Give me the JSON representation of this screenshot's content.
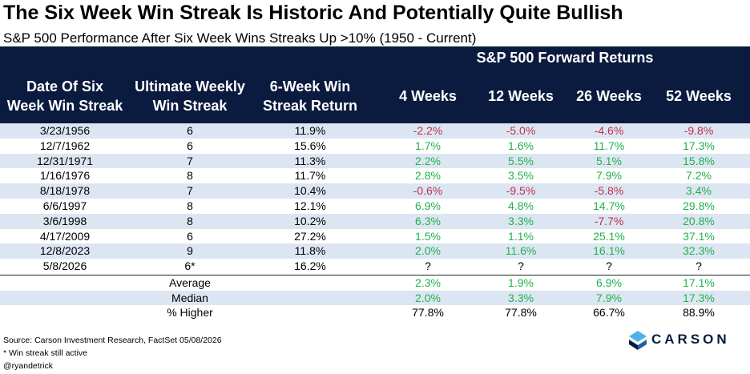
{
  "title": "The Six Week Win Streak Is Historic And Potentially Quite Bullish",
  "subtitle": "S&P 500 Performance After Six Week Wins Streaks Up >10% (1950 - Current)",
  "header": {
    "forward_returns": "S&P 500 Forward Returns",
    "date_line1": "Date Of Six",
    "date_line2": "Week Win Streak",
    "ult_line1": "Ultimate Weekly",
    "ult_line2": "Win Streak",
    "ret_line1": "6-Week Win",
    "ret_line2": "Streak Return",
    "w4": "4 Weeks",
    "w12": "12 Weeks",
    "w26": "26 Weeks",
    "w52": "52 Weeks"
  },
  "rows": [
    {
      "date": "3/23/1956",
      "ult": "6",
      "ret": "11.9%",
      "w4": "-2.2%",
      "w12": "-5.0%",
      "w26": "-4.6%",
      "w52": "-9.8%"
    },
    {
      "date": "12/7/1962",
      "ult": "6",
      "ret": "15.6%",
      "w4": "1.7%",
      "w12": "1.6%",
      "w26": "11.7%",
      "w52": "17.3%"
    },
    {
      "date": "12/31/1971",
      "ult": "7",
      "ret": "11.3%",
      "w4": "2.2%",
      "w12": "5.5%",
      "w26": "5.1%",
      "w52": "15.8%"
    },
    {
      "date": "1/16/1976",
      "ult": "8",
      "ret": "11.7%",
      "w4": "2.8%",
      "w12": "3.5%",
      "w26": "7.9%",
      "w52": "7.2%"
    },
    {
      "date": "8/18/1978",
      "ult": "7",
      "ret": "10.4%",
      "w4": "-0.6%",
      "w12": "-9.5%",
      "w26": "-5.8%",
      "w52": "3.4%"
    },
    {
      "date": "6/6/1997",
      "ult": "8",
      "ret": "12.1%",
      "w4": "6.9%",
      "w12": "4.8%",
      "w26": "14.7%",
      "w52": "29.8%"
    },
    {
      "date": "3/6/1998",
      "ult": "8",
      "ret": "10.2%",
      "w4": "6.3%",
      "w12": "3.3%",
      "w26": "-7.7%",
      "w52": "20.8%"
    },
    {
      "date": "4/17/2009",
      "ult": "6",
      "ret": "27.2%",
      "w4": "1.5%",
      "w12": "1.1%",
      "w26": "25.1%",
      "w52": "37.1%"
    },
    {
      "date": "12/8/2023",
      "ult": "9",
      "ret": "11.8%",
      "w4": "2.0%",
      "w12": "11.6%",
      "w26": "16.1%",
      "w52": "32.3%"
    },
    {
      "date": "5/8/2026",
      "ult": "6*",
      "ret": "16.2%",
      "w4": "?",
      "w12": "?",
      "w26": "?",
      "w52": "?"
    }
  ],
  "summary": [
    {
      "label": "Average",
      "w4": "2.3%",
      "w12": "1.9%",
      "w26": "6.9%",
      "w52": "17.1%"
    },
    {
      "label": "Median",
      "w4": "2.0%",
      "w12": "3.3%",
      "w26": "7.9%",
      "w52": "17.3%"
    },
    {
      "label": "% Higher",
      "w4": "77.8%",
      "w12": "77.8%",
      "w26": "66.7%",
      "w52": "88.9%"
    }
  ],
  "footer": {
    "source": "Source: Carson Investment Research, FactSet 05/08/2026",
    "note": "* Win streak still active",
    "handle": "@ryandetrick"
  },
  "logo": {
    "text": "CARSON"
  },
  "colors": {
    "header_bg": "#0a1b3f",
    "row_shade": "#dce6f2",
    "negative": "#c0304a",
    "positive": "#22b14c",
    "logo_light": "#4fb3e8",
    "logo_dark": "#0a1b3f"
  }
}
